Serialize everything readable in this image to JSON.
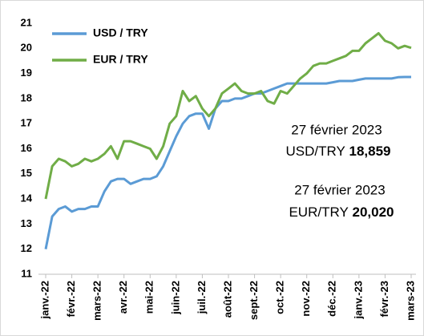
{
  "chart_data": {
    "type": "line",
    "categories": [
      "janv.-22",
      null,
      null,
      null,
      "févr.-22",
      null,
      null,
      null,
      "mars-22",
      null,
      null,
      null,
      "avr.-22",
      null,
      null,
      null,
      "mai-22",
      null,
      null,
      null,
      "juin-22",
      null,
      null,
      null,
      "juil.-22",
      null,
      null,
      null,
      "août-22",
      null,
      null,
      null,
      "sept.-22",
      null,
      null,
      null,
      "oct.-22",
      null,
      null,
      null,
      "nov.-22",
      null,
      null,
      null,
      "déc.-22",
      null,
      null,
      null,
      "janv.-23",
      null,
      null,
      null,
      "févr.-23",
      null,
      null,
      null,
      "mars-23"
    ],
    "series": [
      {
        "name": "USD / TRY",
        "color": "#5b9bd5",
        "values": [
          12.0,
          13.3,
          13.6,
          13.7,
          13.5,
          13.6,
          13.6,
          13.7,
          13.7,
          14.3,
          14.7,
          14.8,
          14.8,
          14.6,
          14.7,
          14.8,
          14.8,
          14.9,
          15.3,
          15.9,
          16.5,
          17.0,
          17.3,
          17.4,
          17.4,
          16.8,
          17.6,
          17.9,
          17.9,
          18.0,
          18.0,
          18.1,
          18.2,
          18.2,
          18.3,
          18.4,
          18.5,
          18.6,
          18.6,
          18.6,
          18.6,
          18.6,
          18.6,
          18.6,
          18.65,
          18.7,
          18.7,
          18.7,
          18.75,
          18.8,
          18.8,
          18.8,
          18.8,
          18.8,
          18.85,
          18.86,
          18.86
        ]
      },
      {
        "name": "EUR / TRY",
        "color": "#70ad47",
        "values": [
          14.0,
          15.3,
          15.6,
          15.5,
          15.3,
          15.4,
          15.6,
          15.5,
          15.6,
          15.8,
          16.1,
          15.6,
          16.3,
          16.3,
          16.2,
          16.1,
          16.0,
          15.6,
          16.1,
          17.0,
          17.3,
          18.3,
          17.9,
          18.1,
          17.6,
          17.3,
          17.6,
          18.2,
          18.4,
          18.6,
          18.3,
          18.2,
          18.2,
          18.3,
          17.9,
          17.8,
          18.3,
          18.2,
          18.5,
          18.8,
          19.0,
          19.3,
          19.4,
          19.4,
          19.5,
          19.6,
          19.7,
          19.9,
          19.9,
          20.2,
          20.4,
          20.6,
          20.3,
          20.2,
          20.0,
          20.1,
          20.02
        ]
      }
    ],
    "annotations": [
      {
        "date": "27 février 2023",
        "label": "USD/TRY",
        "value": "18,859"
      },
      {
        "date": "27 février 2023",
        "label": "EUR/TRY",
        "value": "20,020"
      }
    ],
    "ylim": [
      11,
      21
    ],
    "yticks": [
      11,
      12,
      13,
      14,
      15,
      16,
      17,
      18,
      19,
      20,
      21
    ],
    "grid": false,
    "legend": "top-left"
  }
}
